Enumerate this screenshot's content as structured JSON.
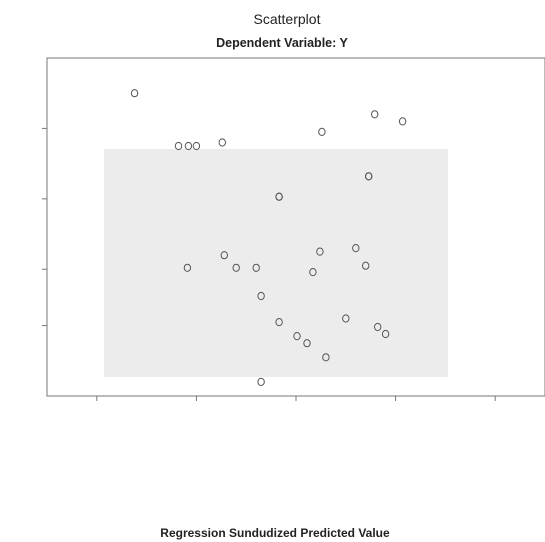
{
  "header": {
    "title": "Scatterplot",
    "subtitle": "Dependent Variable: Y"
  },
  "chart_data": {
    "type": "scatter",
    "title": "Scatterplot",
    "subtitle": "Dependent Variable: Y",
    "xlabel": "Regression Sundudized Predicted Value",
    "ylabel": "",
    "xlim": [
      -2.5,
      2.5
    ],
    "ylim": [
      -2.2,
      2.6
    ],
    "grid": false,
    "marker_color": "#555555",
    "shade_color": "#ececec",
    "points": [
      {
        "x": -1.62,
        "y": 2.1
      },
      {
        "x": -1.18,
        "y": 1.35
      },
      {
        "x": -1.08,
        "y": 1.35
      },
      {
        "x": -1.0,
        "y": 1.35
      },
      {
        "x": -0.74,
        "y": 1.4
      },
      {
        "x": -0.17,
        "y": 0.63
      },
      {
        "x": -0.17,
        "y": 0.63
      },
      {
        "x": 0.26,
        "y": 1.55
      },
      {
        "x": 0.79,
        "y": 1.8
      },
      {
        "x": 1.07,
        "y": 1.7
      },
      {
        "x": 0.73,
        "y": 0.92
      },
      {
        "x": 0.73,
        "y": 0.92
      },
      {
        "x": -1.09,
        "y": -0.38
      },
      {
        "x": -0.72,
        "y": -0.2
      },
      {
        "x": -0.6,
        "y": -0.38
      },
      {
        "x": -0.4,
        "y": -0.38
      },
      {
        "x": 0.17,
        "y": -0.44
      },
      {
        "x": 0.24,
        "y": -0.15
      },
      {
        "x": 0.6,
        "y": -0.1
      },
      {
        "x": 0.7,
        "y": -0.35
      },
      {
        "x": -0.35,
        "y": -0.78
      },
      {
        "x": -0.17,
        "y": -1.15
      },
      {
        "x": 0.01,
        "y": -1.35
      },
      {
        "x": 0.11,
        "y": -1.45
      },
      {
        "x": 0.3,
        "y": -1.65
      },
      {
        "x": 0.5,
        "y": -1.1
      },
      {
        "x": 0.82,
        "y": -1.22
      },
      {
        "x": 0.9,
        "y": -1.32
      },
      {
        "x": -0.35,
        "y": -2.0
      }
    ]
  }
}
